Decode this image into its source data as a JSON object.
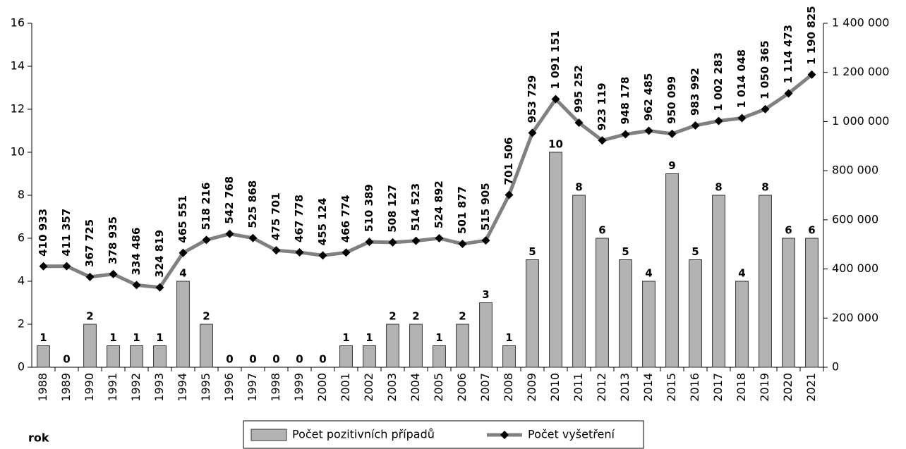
{
  "chart_data": {
    "type": "bar_line",
    "x_label": "rok",
    "categories": [
      "1988",
      "1989",
      "1990",
      "1991",
      "1992",
      "1993",
      "1994",
      "1995",
      "1996",
      "1997",
      "1998",
      "1999",
      "2000",
      "2001",
      "2002",
      "2003",
      "2004",
      "2005",
      "2006",
      "2007",
      "2008",
      "2009",
      "2010",
      "2011",
      "2012",
      "2013",
      "2014",
      "2015",
      "2016",
      "2017",
      "2018",
      "2019",
      "2020",
      "2021"
    ],
    "series": [
      {
        "name": "Počet pozitivních případů",
        "type": "bar",
        "color": "#b3b3b3",
        "values": [
          1,
          0,
          2,
          1,
          1,
          1,
          4,
          2,
          0,
          0,
          0,
          0,
          0,
          1,
          1,
          2,
          2,
          1,
          2,
          3,
          1,
          5,
          10,
          8,
          6,
          5,
          4,
          9,
          5,
          8,
          4,
          8,
          6,
          6
        ]
      },
      {
        "name": "Počet vyšetření",
        "type": "line",
        "axis": "y2",
        "color": "#808080",
        "values": [
          410933,
          411357,
          367725,
          378935,
          334486,
          324819,
          465551,
          518216,
          542768,
          525868,
          475701,
          467778,
          455124,
          466774,
          510389,
          508127,
          514523,
          524892,
          501877,
          515905,
          701506,
          953729,
          1091151,
          995252,
          923119,
          948178,
          962485,
          950099,
          983992,
          1002283,
          1014048,
          1050365,
          1114473,
          1190825
        ],
        "value_labels": [
          "410 933",
          "411 357",
          "367 725",
          "378 935",
          "334 486",
          "324 819",
          "465 551",
          "518 216",
          "542 768",
          "525 868",
          "475 701",
          "467 778",
          "455 124",
          "466 774",
          "510 389",
          "508 127",
          "514 523",
          "524 892",
          "501 877",
          "515 905",
          "701 506",
          "953 729",
          "1 091 151",
          "995 252",
          "923 119",
          "948 178",
          "962 485",
          "950 099",
          "983 992",
          "1 002 283",
          "1 014 048",
          "1 050 365",
          "1 114 473",
          "1 190 825"
        ]
      }
    ],
    "ylim": [
      0,
      16
    ],
    "yticks": [
      0,
      2,
      4,
      6,
      8,
      10,
      12,
      14,
      16
    ],
    "y2lim": [
      0,
      1400000
    ],
    "y2ticks": [
      {
        "value": 0,
        "label": "0"
      },
      {
        "value": 200000,
        "label": "200 000"
      },
      {
        "value": 400000,
        "label": "400 000"
      },
      {
        "value": 600000,
        "label": "600 000"
      },
      {
        "value": 800000,
        "label": "800 000"
      },
      {
        "value": 1000000,
        "label": "1 000 000"
      },
      {
        "value": 1200000,
        "label": "1 200 000"
      },
      {
        "value": 1400000,
        "label": "1 400 000"
      }
    ],
    "legend": "bottom"
  }
}
